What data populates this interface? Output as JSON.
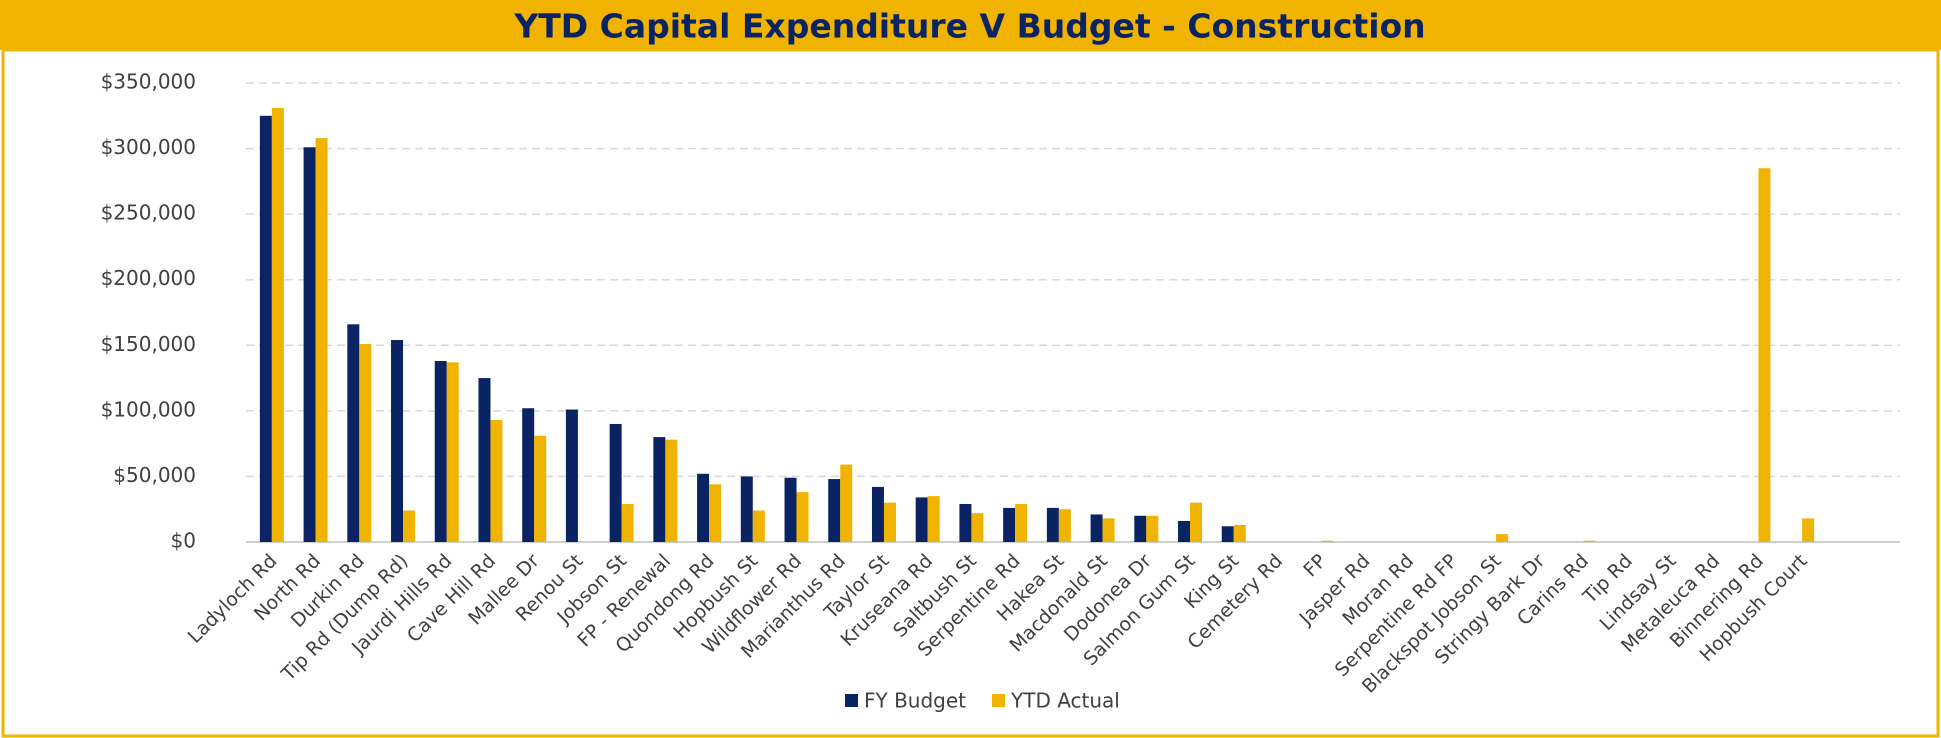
{
  "chart_data": {
    "type": "bar",
    "title": "YTD Capital Expenditure V Budget - Construction",
    "categories": [
      "Ladyloch Rd",
      "North Rd",
      "Durkin Rd",
      "Tip Rd (Dump Rd)",
      "Jaurdi Hills Rd",
      "Cave Hill Rd",
      "Mallee Dr",
      "Renou St",
      "Jobson St",
      "FP - Renewal",
      "Quondong Rd",
      "Hopbush St",
      "Wildflower Rd",
      "Marianthus Rd",
      "Taylor St",
      "Kruseana Rd",
      "Saltbush St",
      "Serpentine Rd",
      "Hakea St",
      "Macdonald St",
      "Dodonea Dr",
      "Salmon Gum St",
      "King St",
      "Cemetery Rd",
      "FP",
      "Jasper Rd",
      "Moran Rd",
      "Serpentine Rd FP",
      "Blackspot Jobson St",
      "Stringy Bark Dr",
      "Carins Rd",
      "Tip Rd",
      "Lindsay St",
      "Metaleuca Rd",
      "Binnering Rd",
      "Hopbush Court"
    ],
    "series": [
      {
        "name": "FY Budget",
        "color": "#0a2463",
        "values": [
          325000,
          301000,
          166000,
          154000,
          138000,
          125000,
          102000,
          101000,
          90000,
          80000,
          52000,
          50000,
          49000,
          48000,
          42000,
          34000,
          29000,
          26000,
          26000,
          21000,
          20000,
          16000,
          12000,
          0,
          0,
          0,
          0,
          0,
          0,
          0,
          0,
          0,
          0,
          0,
          0,
          0
        ]
      },
      {
        "name": "YTD Actual",
        "color": "#f0b400",
        "values": [
          331000,
          308000,
          151000,
          24000,
          137000,
          93000,
          81000,
          0,
          29000,
          78000,
          44000,
          24000,
          38000,
          59000,
          30000,
          35000,
          22000,
          29000,
          25000,
          18000,
          20000,
          30000,
          13000,
          0,
          1000,
          0,
          0,
          0,
          6000,
          0,
          1000,
          0,
          0,
          0,
          285000,
          18000
        ]
      }
    ],
    "ylim": [
      0,
      350000
    ],
    "yticks": [
      {
        "value": 0,
        "label": "$0"
      },
      {
        "value": 50000,
        "label": "$50,000"
      },
      {
        "value": 100000,
        "label": "$100,000"
      },
      {
        "value": 150000,
        "label": "$150,000"
      },
      {
        "value": 200000,
        "label": "$200,000"
      },
      {
        "value": 250000,
        "label": "$250,000"
      },
      {
        "value": 300000,
        "label": "$300,000"
      },
      {
        "value": 350000,
        "label": "$350,000"
      }
    ],
    "grid": true,
    "legend": "bottom"
  }
}
